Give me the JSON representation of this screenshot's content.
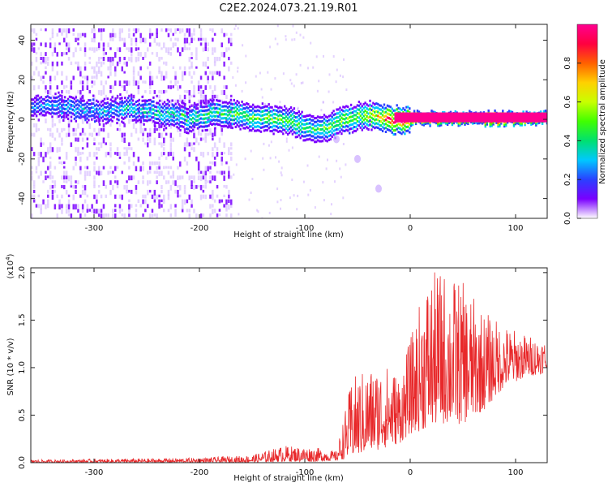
{
  "figure": {
    "title": "C2E2.2024.073.21.19.R01"
  },
  "colors": {
    "snr_line": "#e8282a",
    "spectrum_purple": "#7a00ff",
    "spectrum_light": "#c9a8ff",
    "colorbar": [
      "#ffffff",
      "#7a00ff",
      "#2a40ff",
      "#00c8ff",
      "#00e070",
      "#40ff00",
      "#c8ff00",
      "#ffd000",
      "#ff6000",
      "#ff0040",
      "#ff0090"
    ]
  },
  "chart_data": [
    {
      "type": "heatmap",
      "xlabel": "Height of straight line (km)",
      "ylabel": "Frequency (Hz)",
      "xlim": [
        -360,
        130
      ],
      "ylim": [
        -50,
        48
      ],
      "xticks": [
        -300,
        -200,
        -100,
        0,
        100
      ],
      "yticks": [
        -40,
        -20,
        0,
        20,
        40
      ],
      "xtick_labels": [
        "-300",
        "-200",
        "-100",
        "0",
        "100"
      ],
      "ytick_labels": [
        "-40",
        "-20",
        "0",
        "20",
        "40"
      ],
      "colorbar": {
        "label": "Normalized spectral amplitude",
        "range": [
          0,
          1
        ],
        "ticks": [
          0.0,
          0.2,
          0.4,
          0.6,
          0.8
        ],
        "tick_labels": [
          "0.0",
          "0.2",
          "0.4",
          "0.6",
          "0.8"
        ]
      },
      "ridge": [
        {
          "x": -360,
          "freq": 8,
          "amp": 0.25
        },
        {
          "x": -330,
          "freq": 7,
          "amp": 0.3
        },
        {
          "x": -300,
          "freq": 5,
          "amp": 0.3
        },
        {
          "x": -270,
          "freq": 6,
          "amp": 0.32
        },
        {
          "x": -240,
          "freq": 4,
          "amp": 0.35
        },
        {
          "x": -210,
          "freq": 1,
          "amp": 0.4
        },
        {
          "x": -180,
          "freq": 4,
          "amp": 0.45
        },
        {
          "x": -150,
          "freq": 2,
          "amp": 0.5
        },
        {
          "x": -120,
          "freq": 0,
          "amp": 0.5
        },
        {
          "x": -100,
          "freq": -3,
          "amp": 0.45
        },
        {
          "x": -80,
          "freq": -4,
          "amp": 0.5
        },
        {
          "x": -60,
          "freq": 1,
          "amp": 0.55
        },
        {
          "x": -40,
          "freq": 3,
          "amp": 0.6
        },
        {
          "x": -20,
          "freq": 0,
          "amp": 0.9
        },
        {
          "x": 0,
          "freq": 1,
          "amp": 0.95
        },
        {
          "x": 50,
          "freq": 1,
          "amp": 0.95
        },
        {
          "x": 100,
          "freq": 1,
          "amp": 0.95
        },
        {
          "x": 130,
          "freq": 1,
          "amp": 0.95
        }
      ],
      "noise_region_x": [
        -360,
        -170
      ],
      "secondary_trace": [
        {
          "x": -70,
          "freq": -10
        },
        {
          "x": -50,
          "freq": -20
        },
        {
          "x": -30,
          "freq": -35
        }
      ]
    },
    {
      "type": "line",
      "xlabel": "Height of straight line (km)",
      "ylabel": "SNR (10 * v/v)",
      "y_multiplier_label": "(x10",
      "y_multiplier_exp": "4",
      "y_multiplier_close": ")",
      "xlim": [
        -360,
        130
      ],
      "ylim": [
        0,
        2.05
      ],
      "xticks": [
        -300,
        -200,
        -100,
        0,
        100
      ],
      "yticks": [
        0.0,
        0.5,
        1.0,
        1.5,
        2.0
      ],
      "xtick_labels": [
        "-300",
        "-200",
        "-100",
        "0",
        "100"
      ],
      "ytick_labels": [
        "0.0",
        "0.5",
        "1.0",
        "1.5",
        "2.0"
      ],
      "series": [
        {
          "envelope": [
            {
              "x": -360,
              "lo": 0.0,
              "hi": 0.03
            },
            {
              "x": -280,
              "lo": 0.0,
              "hi": 0.04
            },
            {
              "x": -200,
              "lo": 0.0,
              "hi": 0.05
            },
            {
              "x": -150,
              "lo": 0.0,
              "hi": 0.08
            },
            {
              "x": -120,
              "lo": 0.01,
              "hi": 0.18
            },
            {
              "x": -90,
              "lo": 0.01,
              "hi": 0.16
            },
            {
              "x": -70,
              "lo": 0.02,
              "hi": 0.12
            },
            {
              "x": -55,
              "lo": 0.05,
              "hi": 0.9
            },
            {
              "x": -40,
              "lo": 0.1,
              "hi": 1.0
            },
            {
              "x": -25,
              "lo": 0.15,
              "hi": 1.05
            },
            {
              "x": -10,
              "lo": 0.2,
              "hi": 0.95
            },
            {
              "x": 0,
              "lo": 0.3,
              "hi": 1.3
            },
            {
              "x": 15,
              "lo": 0.35,
              "hi": 1.95
            },
            {
              "x": 30,
              "lo": 0.4,
              "hi": 2.05
            },
            {
              "x": 50,
              "lo": 0.4,
              "hi": 1.9
            },
            {
              "x": 70,
              "lo": 0.55,
              "hi": 1.6
            },
            {
              "x": 90,
              "lo": 0.8,
              "hi": 1.45
            },
            {
              "x": 110,
              "lo": 0.9,
              "hi": 1.35
            },
            {
              "x": 130,
              "lo": 0.95,
              "hi": 1.3
            }
          ]
        }
      ]
    }
  ]
}
